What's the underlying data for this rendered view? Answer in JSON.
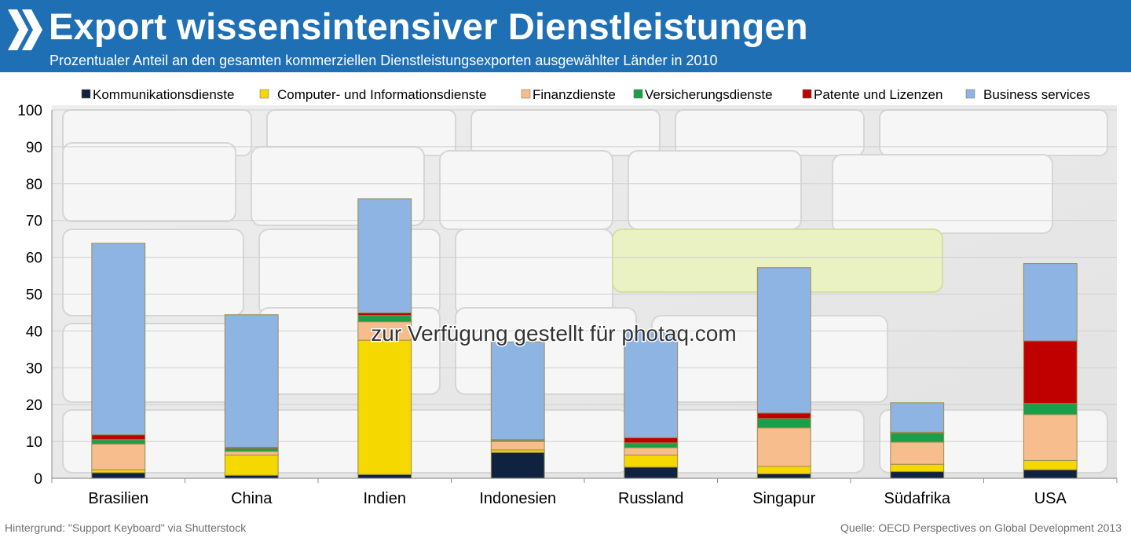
{
  "header": {
    "title": "Export wissensintensiver Dienstleistungen",
    "subtitle": "Prozentualer Anteil an den gesamten kommerziellen Dienstleistungsexporten ausgewählter Länder in 2010"
  },
  "watermark": "zur Verfügung gestellt für photaq.com",
  "footer": {
    "left": "Hintergrund: \"Support Keyboard\" via Shutterstock",
    "right": "Quelle: OECD Perspectives on Global Development 2013"
  },
  "colors": {
    "header_bg": "#1f6fb4",
    "grid": "#d0d0d0"
  },
  "chart_data": {
    "type": "bar",
    "stacked": true,
    "categories": [
      "Brasilien",
      "China",
      "Indien",
      "Indonesien",
      "Russland",
      "Singapur",
      "Südafrika",
      "USA"
    ],
    "ylim": [
      0,
      100
    ],
    "yticks": [
      0,
      10,
      20,
      30,
      40,
      50,
      60,
      70,
      80,
      90,
      100
    ],
    "grid": true,
    "legend_position": "top",
    "series": [
      {
        "name": "Kommunikationsdienste",
        "color": "#0f2240",
        "values": [
          1.5,
          0.8,
          1.0,
          7.0,
          3.0,
          1.2,
          1.8,
          2.3
        ]
      },
      {
        "name": "Computer- und Informationsdienste",
        "color": "#f5d800",
        "values": [
          0.8,
          5.5,
          36.5,
          0.7,
          3.3,
          2.0,
          2.0,
          2.5
        ]
      },
      {
        "name": "Finanzdienste",
        "color": "#f7bd8c",
        "values": [
          7.0,
          1.0,
          5.0,
          2.3,
          2.0,
          10.5,
          6.0,
          12.5
        ]
      },
      {
        "name": "Versicherungsdienste",
        "color": "#1a9e49",
        "values": [
          1.2,
          0.8,
          1.7,
          0.3,
          1.3,
          2.5,
          2.5,
          3.0
        ]
      },
      {
        "name": "Patente und Lizenzen",
        "color": "#c00000",
        "values": [
          1.3,
          0.3,
          0.7,
          0.2,
          1.4,
          1.5,
          0.2,
          17.0
        ]
      },
      {
        "name": "Business services",
        "color": "#8eb4e3",
        "values": [
          52.0,
          36.0,
          31.0,
          26.5,
          29.0,
          39.5,
          8.0,
          21.0
        ]
      }
    ]
  }
}
